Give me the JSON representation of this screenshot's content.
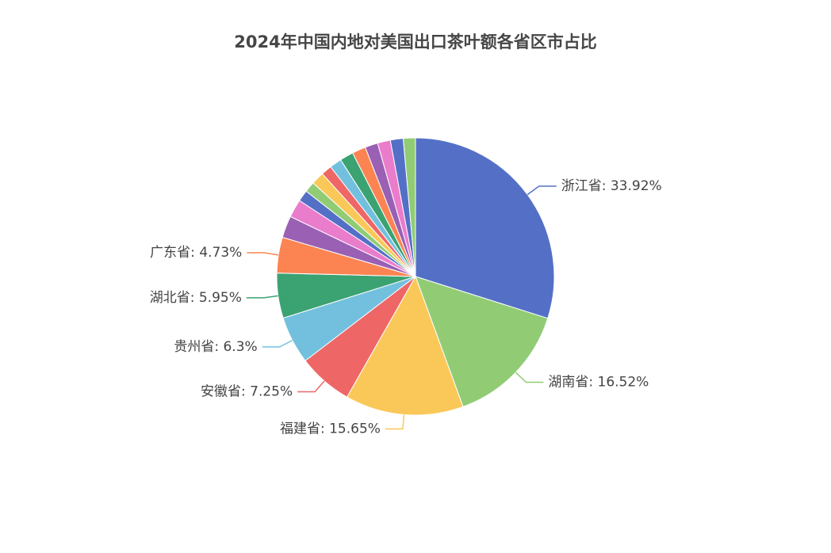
{
  "chart_data": {
    "type": "pie",
    "title": "2024年中国内地对美国出口茶叶额各省区市占比",
    "categories": [
      "浙江省",
      "湖南省",
      "福建省",
      "安徽省",
      "贵州省",
      "湖北省",
      "广东省",
      null,
      null,
      null,
      null,
      null,
      null,
      null,
      null,
      null,
      null,
      null,
      null,
      null
    ],
    "values": [
      33.92,
      16.52,
      15.65,
      7.25,
      6.3,
      5.95,
      4.73,
      2.9,
      2.4,
      1.5,
      1.4,
      1.7,
      1.4,
      1.6,
      1.8,
      1.8,
      1.7,
      1.7,
      1.7,
      1.6
    ],
    "value_labels": [
      "33.92%",
      "16.52%",
      "15.65%",
      "7.25%",
      "6.3%",
      "5.95%",
      "4.73%",
      null,
      null,
      null,
      null,
      null,
      null,
      null,
      null,
      null,
      null,
      null,
      null,
      null
    ],
    "colors": [
      "#5470c6",
      "#91cc75",
      "#fac858",
      "#ee6666",
      "#73c0de",
      "#3ba272",
      "#fc8452",
      "#9a60b4",
      "#ea7ccc"
    ]
  }
}
